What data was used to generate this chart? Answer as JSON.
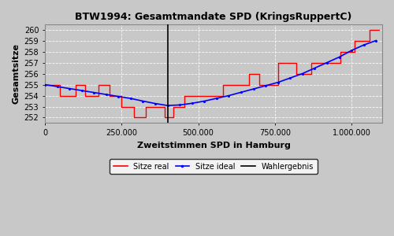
{
  "title": "BTW1994: Gesamtmandate SPD (KringsRuppertC)",
  "xlabel": "Zweitstimmen SPD in Hamburg",
  "ylabel": "Gesamtsitze",
  "background_color": "#c8c8c8",
  "plot_bg_color": "#c8c8c8",
  "ylim": [
    251.5,
    260.5
  ],
  "xlim": [
    0,
    1100000
  ],
  "wahlergebnis_x": 400000,
  "xticks": [
    0,
    250000,
    500000,
    750000,
    1000000
  ],
  "yticks": [
    252,
    253,
    254,
    255,
    256,
    257,
    258,
    259,
    260
  ],
  "ideal_x": [
    0,
    40000,
    80000,
    120000,
    160000,
    200000,
    240000,
    280000,
    320000,
    360000,
    400000,
    440000,
    480000,
    520000,
    560000,
    600000,
    640000,
    680000,
    720000,
    760000,
    800000,
    840000,
    880000,
    920000,
    960000,
    1000000,
    1040000,
    1080000
  ],
  "ideal_y": [
    255.0,
    254.82,
    254.64,
    254.46,
    254.28,
    254.1,
    253.92,
    253.74,
    253.5,
    253.28,
    253.1,
    253.15,
    253.3,
    253.5,
    253.75,
    254.0,
    254.3,
    254.6,
    254.9,
    255.2,
    255.6,
    256.0,
    256.5,
    257.0,
    257.5,
    258.1,
    258.6,
    259.0
  ],
  "real_x": [
    0,
    50000,
    50000,
    100000,
    100000,
    130000,
    130000,
    175000,
    175000,
    210000,
    210000,
    250000,
    250000,
    290000,
    290000,
    330000,
    330000,
    390000,
    390000,
    420000,
    420000,
    455000,
    455000,
    530000,
    530000,
    580000,
    580000,
    635000,
    635000,
    665000,
    665000,
    700000,
    700000,
    730000,
    730000,
    760000,
    760000,
    820000,
    820000,
    870000,
    870000,
    910000,
    910000,
    965000,
    965000,
    1010000,
    1010000,
    1060000,
    1060000,
    1090000
  ],
  "real_y": [
    255,
    255,
    254,
    254,
    255,
    255,
    254,
    254,
    255,
    255,
    254,
    254,
    253,
    253,
    252,
    252,
    253,
    253,
    252,
    252,
    253,
    253,
    254,
    254,
    254,
    254,
    255,
    255,
    255,
    255,
    256,
    256,
    255,
    255,
    255,
    255,
    257,
    257,
    256,
    256,
    257,
    257,
    257,
    257,
    258,
    258,
    259,
    259,
    260,
    260
  ],
  "legend_labels": [
    "Sitze real",
    "Sitze ideal",
    "Wahlergebnis"
  ]
}
